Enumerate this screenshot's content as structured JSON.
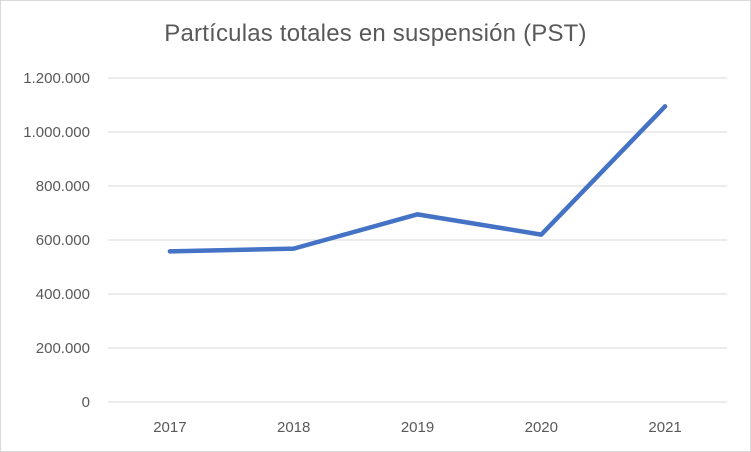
{
  "chart_data": {
    "type": "line",
    "title": "Partículas totales en suspensión (PST)",
    "xlabel": "",
    "ylabel": "",
    "categories": [
      "2017",
      "2018",
      "2019",
      "2020",
      "2021"
    ],
    "series": [
      {
        "values": [
          558000,
          568000,
          695000,
          620000,
          1095000
        ],
        "color": "#4472c4"
      }
    ],
    "ylim": [
      0,
      1200000
    ],
    "yticks": [
      0,
      200000,
      400000,
      600000,
      800000,
      1000000,
      1200000
    ],
    "ytick_labels": [
      "0",
      "200.000",
      "400.000",
      "600.000",
      "800.000",
      "1.000.000",
      "1.200.000"
    ],
    "grid": true,
    "legend": "none",
    "colors": {
      "gridline": "#d9d9d9",
      "axis_text": "#595959",
      "title_text": "#595959",
      "line": "#4472c4"
    }
  }
}
